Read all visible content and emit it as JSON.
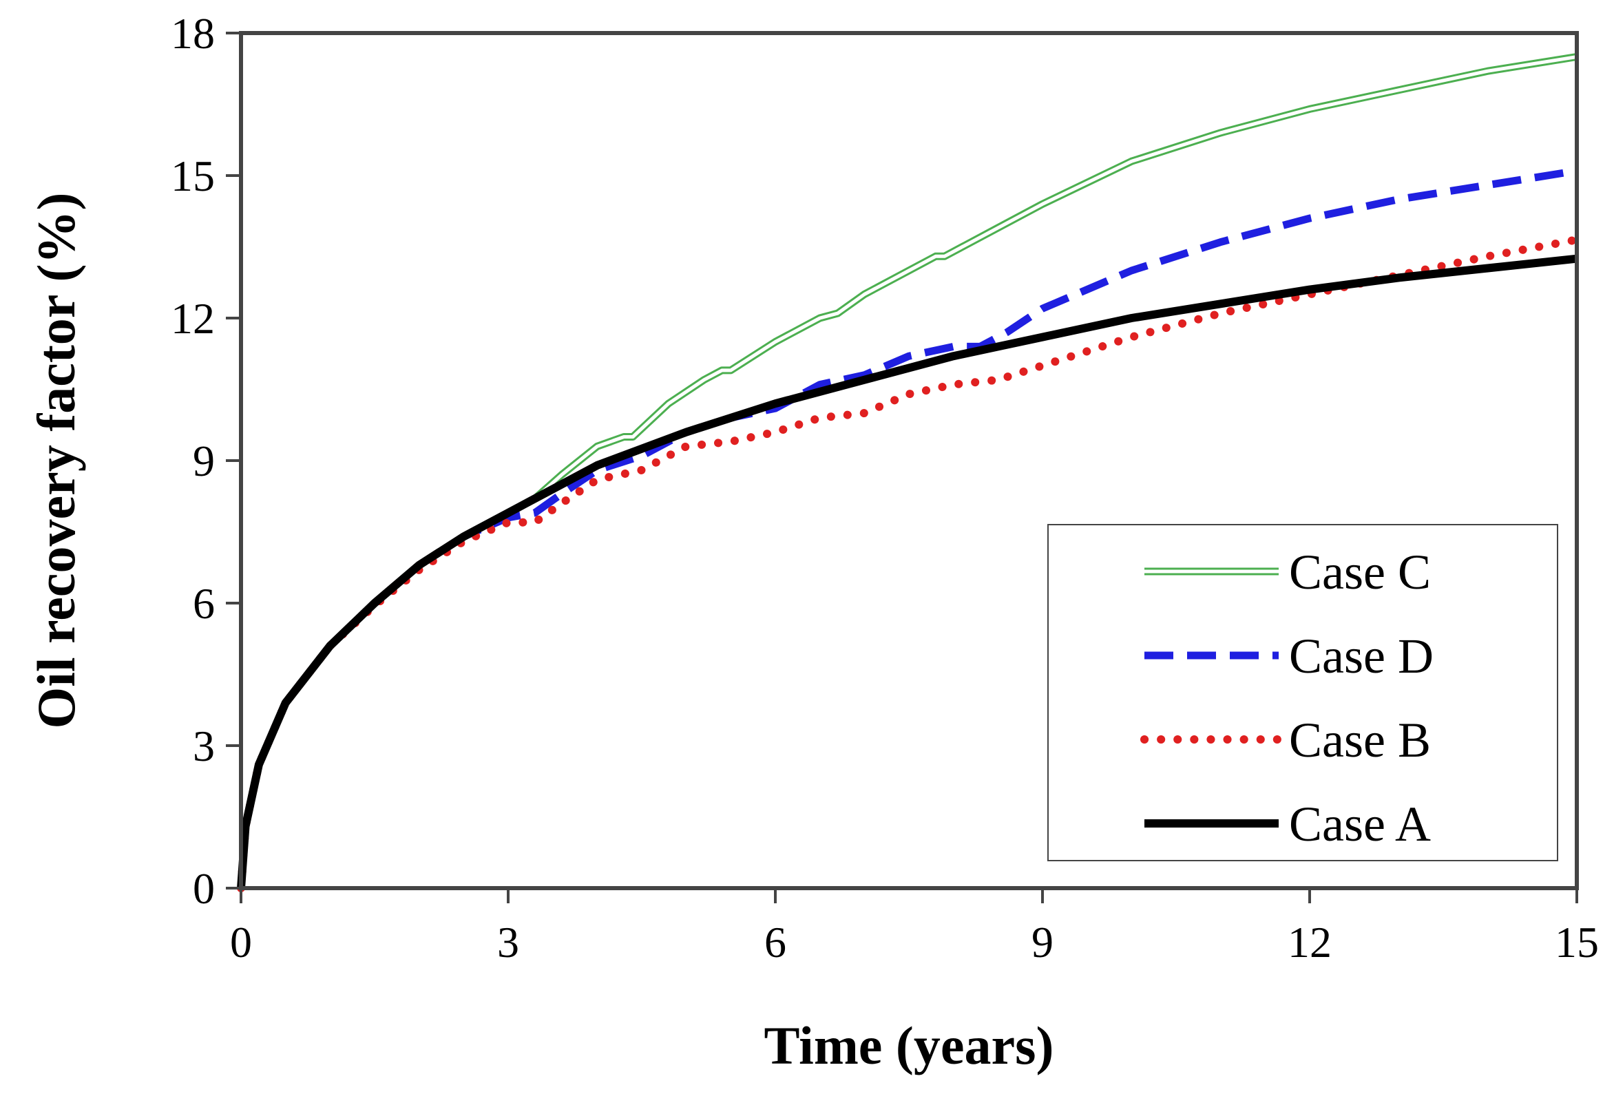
{
  "chart_data": {
    "type": "line",
    "xlabel": "Time  (years)",
    "ylabel": "Oil recovery  factor  (%)",
    "xlim": [
      0,
      15
    ],
    "ylim": [
      0,
      18
    ],
    "xticks": [
      0,
      3,
      6,
      9,
      12,
      15
    ],
    "yticks": [
      0,
      3,
      6,
      9,
      12,
      15,
      18
    ],
    "legend_position": "bottom-right",
    "grid": false,
    "series": [
      {
        "name": "Case C",
        "key": "caseC",
        "color": "#4caf50",
        "style": "double",
        "x": [
          0,
          0.05,
          0.2,
          0.5,
          1,
          1.5,
          2,
          2.5,
          3,
          3.3,
          3.6,
          4,
          4.3,
          4.4,
          4.8,
          5.2,
          5.4,
          5.5,
          6,
          6.5,
          6.7,
          7,
          7.5,
          7.8,
          7.9,
          8.5,
          9,
          10,
          11,
          12,
          13,
          14,
          15
        ],
        "values": [
          0,
          1.3,
          2.6,
          3.9,
          5.1,
          6.0,
          6.8,
          7.4,
          7.9,
          8.2,
          8.7,
          9.3,
          9.5,
          9.5,
          10.2,
          10.7,
          10.9,
          10.9,
          11.5,
          12.0,
          12.1,
          12.5,
          13.0,
          13.3,
          13.3,
          13.9,
          14.4,
          15.3,
          15.9,
          16.4,
          16.8,
          17.2,
          17.5
        ]
      },
      {
        "name": "Case D",
        "key": "caseD",
        "color": "#1f1fe0",
        "style": "dashed",
        "x": [
          0,
          0.05,
          0.2,
          0.5,
          1,
          1.5,
          2,
          2.5,
          3,
          3.3,
          3.6,
          4,
          4.5,
          5,
          5.5,
          6,
          6.5,
          7,
          7.5,
          8,
          8.3,
          8.6,
          9,
          10,
          11,
          12,
          13,
          14,
          15
        ],
        "values": [
          0,
          1.3,
          2.6,
          3.9,
          5.1,
          6.0,
          6.8,
          7.4,
          7.8,
          7.9,
          8.3,
          8.8,
          9.1,
          9.6,
          9.9,
          10.1,
          10.6,
          10.8,
          11.2,
          11.4,
          11.4,
          11.7,
          12.2,
          13.0,
          13.6,
          14.1,
          14.5,
          14.8,
          15.1
        ]
      },
      {
        "name": "Case B",
        "key": "caseB",
        "color": "#e02020",
        "style": "dotted",
        "x": [
          0,
          0.05,
          0.2,
          0.5,
          1,
          1.5,
          2,
          2.5,
          3,
          3.3,
          3.6,
          4,
          4.5,
          5,
          5.5,
          6,
          6.5,
          7,
          7.5,
          8,
          8.5,
          9,
          10,
          11,
          12,
          13,
          14,
          15
        ],
        "values": [
          0,
          1.3,
          2.6,
          3.9,
          5.1,
          5.95,
          6.7,
          7.3,
          7.7,
          7.7,
          8.1,
          8.6,
          8.8,
          9.3,
          9.4,
          9.6,
          9.9,
          10.0,
          10.4,
          10.6,
          10.7,
          11.0,
          11.6,
          12.1,
          12.5,
          12.9,
          13.3,
          13.65
        ]
      },
      {
        "name": "Case A",
        "key": "caseA",
        "color": "#000000",
        "style": "solid-thick",
        "x": [
          0,
          0.05,
          0.2,
          0.5,
          1,
          1.5,
          2,
          2.5,
          3,
          3.5,
          4,
          5,
          6,
          7,
          8,
          9,
          10,
          11,
          12,
          13,
          14,
          15
        ],
        "values": [
          0,
          1.3,
          2.6,
          3.9,
          5.1,
          6.0,
          6.8,
          7.4,
          7.9,
          8.4,
          8.9,
          9.6,
          10.2,
          10.7,
          11.2,
          11.6,
          12.0,
          12.3,
          12.6,
          12.85,
          13.05,
          13.25
        ]
      }
    ]
  }
}
